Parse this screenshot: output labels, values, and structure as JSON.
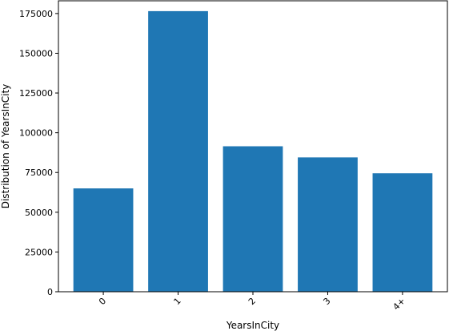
{
  "chart_data": {
    "type": "bar",
    "categories": [
      "0",
      "1",
      "2",
      "3",
      "4+"
    ],
    "values": [
      65000,
      176500,
      91500,
      84500,
      74500
    ],
    "title": "",
    "xlabel": "YearsInCity",
    "ylabel": "Distribution of YearsInCity",
    "ylim": [
      0,
      183000
    ],
    "yticks": [
      0,
      25000,
      50000,
      75000,
      100000,
      125000,
      150000,
      175000
    ],
    "ytick_labels": [
      "0",
      "25000",
      "50000",
      "75000",
      "100000",
      "125000",
      "150000",
      "175000"
    ],
    "grid": false,
    "bar_color": "#1f77b4",
    "x_tick_rotation_deg": 45
  }
}
